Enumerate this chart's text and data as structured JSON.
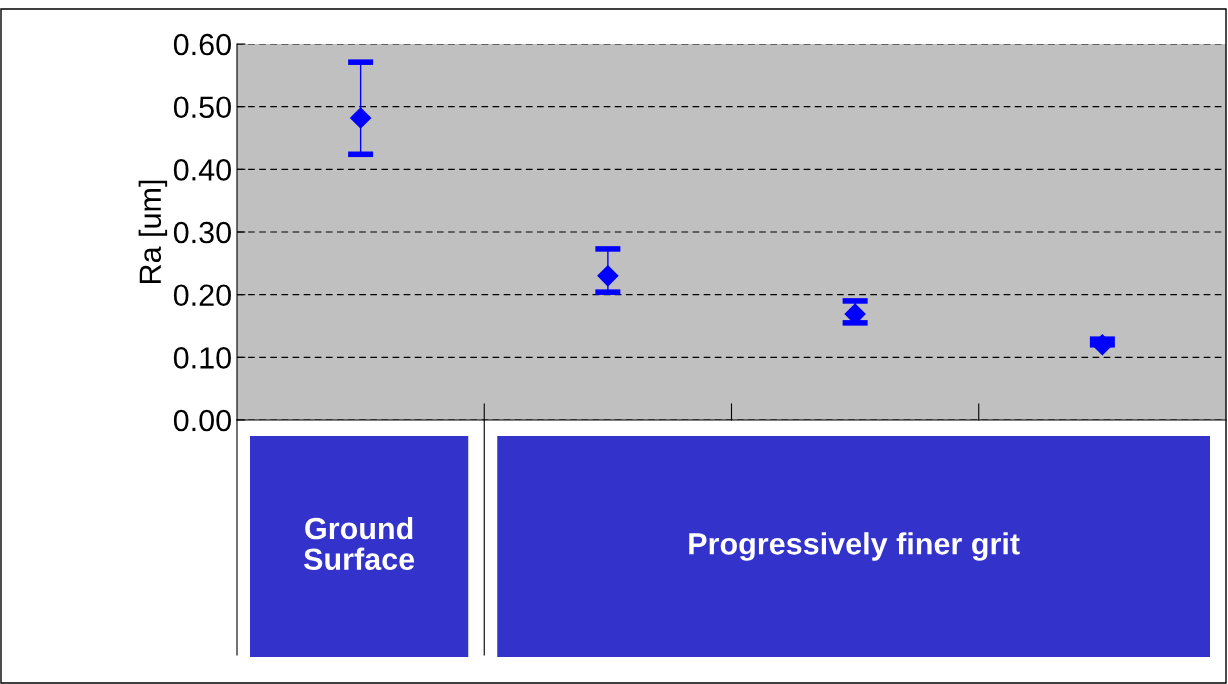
{
  "chart_data": {
    "type": "scatter",
    "ylabel": "Ra [um]",
    "categories": [
      null,
      null,
      null,
      null
    ],
    "series": [
      {
        "color": "#0000ff",
        "values": [
          0.482,
          0.23,
          0.169,
          0.12
        ],
        "errors": [
          [
            0.424,
            0.571
          ],
          [
            0.204,
            0.273
          ],
          [
            0.155,
            0.19
          ],
          [
            0.12,
            0.129
          ]
        ]
      }
    ],
    "marker": "diamond",
    "ylim": [
      0,
      0.6
    ],
    "yticks": [
      {
        "value": 0,
        "label": "0.00"
      },
      {
        "value": 0.1,
        "label": "0.10"
      },
      {
        "value": 0.2,
        "label": "0.20"
      },
      {
        "value": 0.3,
        "label": "0.30"
      },
      {
        "value": 0.4,
        "label": "0.40"
      },
      {
        "value": 0.5,
        "label": "0.50"
      },
      {
        "value": 0.6,
        "label": "0.60"
      }
    ],
    "grid": "y",
    "legend": false,
    "annotations": [
      "Ground\nSurface",
      "Progressively finer grit"
    ]
  }
}
